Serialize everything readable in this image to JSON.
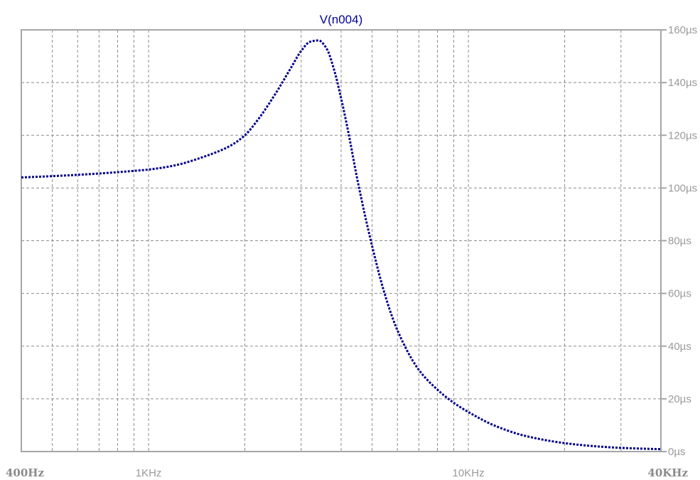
{
  "chart_data": {
    "type": "line",
    "title": "V(n004)",
    "xlabel": "",
    "ylabel": "",
    "x_scale": "log",
    "xlim": [
      400,
      40000
    ],
    "ylim": [
      0,
      160
    ],
    "grid": true,
    "x_tick_labels": [
      {
        "value": 400,
        "label": "400Hz",
        "style": "bold"
      },
      {
        "value": 1000,
        "label": "1KHz",
        "style": "normal"
      },
      {
        "value": 10000,
        "label": "10KHz",
        "style": "normal"
      },
      {
        "value": 40000,
        "label": "40KHz",
        "style": "bold"
      }
    ],
    "x_gridlines": [
      500,
      600,
      700,
      800,
      900,
      1000,
      2000,
      3000,
      4000,
      5000,
      6000,
      7000,
      8000,
      9000,
      10000,
      20000,
      30000
    ],
    "y_ticks": [
      {
        "value": 0,
        "label": "0µs"
      },
      {
        "value": 20,
        "label": "20µs"
      },
      {
        "value": 40,
        "label": "40µs"
      },
      {
        "value": 60,
        "label": "60µs"
      },
      {
        "value": 80,
        "label": "80µs"
      },
      {
        "value": 100,
        "label": "100µs"
      },
      {
        "value": 120,
        "label": "120µs"
      },
      {
        "value": 140,
        "label": "140µs"
      },
      {
        "value": 160,
        "label": "160µs"
      }
    ],
    "series": [
      {
        "color": "#00008b",
        "style": "dotted",
        "x": [
          400,
          500,
          600,
          700,
          800,
          900,
          1000,
          1200,
          1500,
          1800,
          2000,
          2200,
          2500,
          2800,
          3000,
          3200,
          3400,
          3600,
          3800,
          4000,
          4200,
          4500,
          5000,
          5500,
          6000,
          7000,
          8000,
          9000,
          10000,
          12000,
          15000,
          20000,
          25000,
          30000,
          35000,
          40000
        ],
        "values": [
          104,
          104.5,
          105,
          105.5,
          106,
          106.5,
          107,
          108.5,
          112,
          116,
          120,
          126,
          136,
          146,
          152,
          155.5,
          156,
          153,
          145,
          134,
          122,
          103,
          78,
          59,
          46,
          31,
          23.5,
          18.5,
          15,
          10,
          6,
          3.2,
          2,
          1.4,
          1.1,
          0.9
        ]
      }
    ]
  }
}
